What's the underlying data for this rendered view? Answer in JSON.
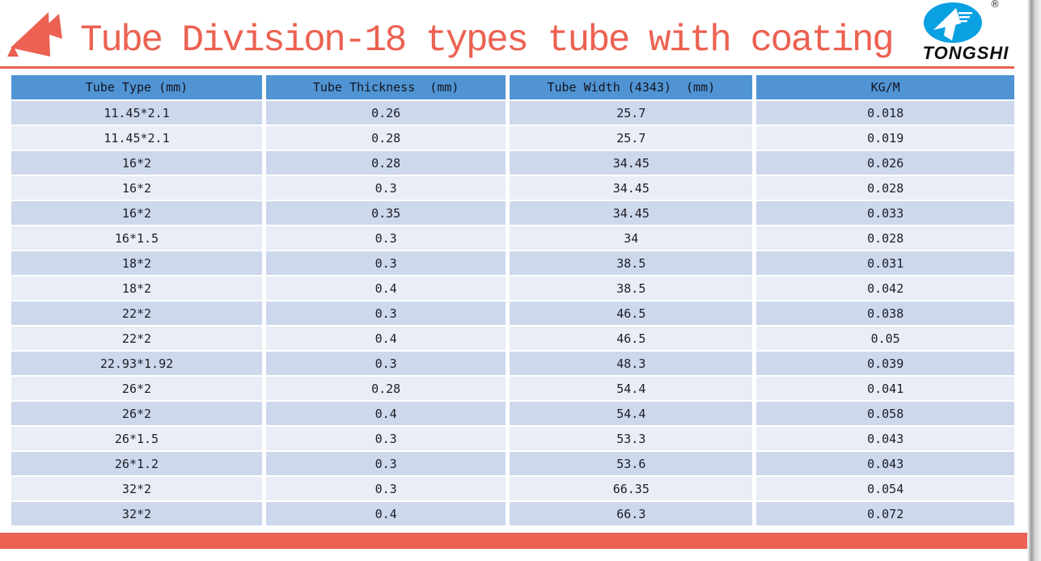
{
  "slide": {
    "title": "Tube Division-18 types tube with coating",
    "brand": {
      "name": "TONGSHI",
      "registered_mark": "®"
    },
    "table": {
      "columns": [
        "Tube Type (mm)",
        "Tube Thickness  (mm)",
        "Tube Width (4343)  (mm)",
        "KG/M"
      ],
      "rows": [
        [
          "11.45*2.1",
          "0.26",
          "25.7",
          "0.018"
        ],
        [
          "11.45*2.1",
          "0.28",
          "25.7",
          "0.019"
        ],
        [
          "16*2",
          "0.28",
          "34.45",
          "0.026"
        ],
        [
          "16*2",
          "0.3",
          "34.45",
          "0.028"
        ],
        [
          "16*2",
          "0.35",
          "34.45",
          "0.033"
        ],
        [
          "16*1.5",
          "0.3",
          "34",
          "0.028"
        ],
        [
          "18*2",
          "0.3",
          "38.5",
          "0.031"
        ],
        [
          "18*2",
          "0.4",
          "38.5",
          "0.042"
        ],
        [
          "22*2",
          "0.3",
          "46.5",
          "0.038"
        ],
        [
          "22*2",
          "0.4",
          "46.5",
          "0.05"
        ],
        [
          "22.93*1.92",
          "0.3",
          "48.3",
          "0.039"
        ],
        [
          "26*2",
          "0.28",
          "54.4",
          "0.041"
        ],
        [
          "26*2",
          "0.4",
          "54.4",
          "0.058"
        ],
        [
          "26*1.5",
          "0.3",
          "53.3",
          "0.043"
        ],
        [
          "26*1.2",
          "0.3",
          "53.6",
          "0.043"
        ],
        [
          "32*2",
          "0.3",
          "66.35",
          "0.054"
        ],
        [
          "32*2",
          "0.4",
          "66.3",
          "0.072"
        ]
      ]
    },
    "colors": {
      "accent_red": "#EC6151",
      "header_blue": "#5094D4",
      "row_band_dark": "#CDD8EC",
      "row_band_light": "#E9EDF6",
      "brand_blue": "#0AA1E2",
      "page_background": "#FFFFFF"
    }
  }
}
